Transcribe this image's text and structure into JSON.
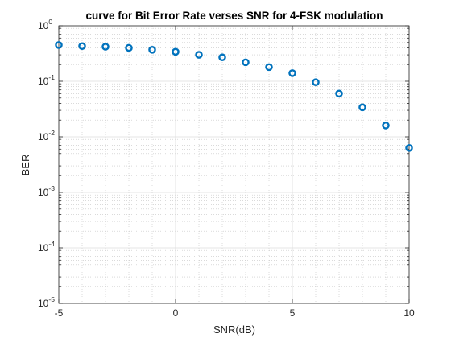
{
  "chart_data": {
    "type": "scatter",
    "title": "curve for Bit Error Rate verses  SNR for 4-FSK modulation",
    "xlabel": "SNR(dB)",
    "ylabel": "BER",
    "xlim": [
      -5,
      10
    ],
    "ylim": [
      1e-05,
      1
    ],
    "yscale": "log",
    "grid": true,
    "minor_grid": true,
    "x_ticks": [
      -5,
      0,
      5,
      10
    ],
    "x_tick_labels": [
      "-5",
      "0",
      "5",
      "10"
    ],
    "y_ticks": [
      {
        "value": 1,
        "base": "10",
        "exp": "0"
      },
      {
        "value": 0.1,
        "base": "10",
        "exp": "-1"
      },
      {
        "value": 0.01,
        "base": "10",
        "exp": "-2"
      },
      {
        "value": 0.001,
        "base": "10",
        "exp": "-3"
      },
      {
        "value": 0.0001,
        "base": "10",
        "exp": "-4"
      },
      {
        "value": 1e-05,
        "base": "10",
        "exp": "-5"
      }
    ],
    "marker_color": "#0072BD",
    "series": [
      {
        "x": [
          -5,
          -4,
          -3,
          -2,
          -1,
          0,
          1,
          2,
          3,
          4,
          5,
          6,
          7,
          8,
          9,
          10
        ],
        "y": [
          0.45,
          0.43,
          0.42,
          0.4,
          0.37,
          0.34,
          0.3,
          0.27,
          0.22,
          0.18,
          0.14,
          0.096,
          0.06,
          0.034,
          0.016,
          0.0063
        ]
      }
    ]
  }
}
